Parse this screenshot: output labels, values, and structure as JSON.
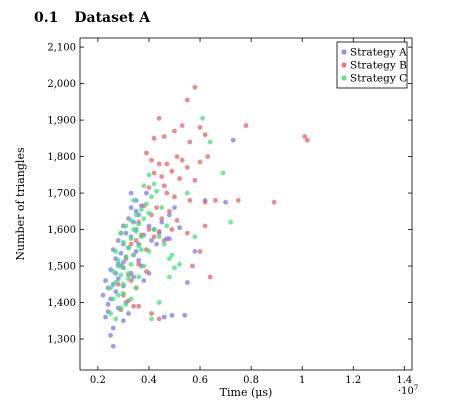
{
  "heading": {
    "number": "0.1",
    "title": "Dataset A"
  },
  "chart_data": {
    "type": "scatter",
    "title": "",
    "xlabel": "Time (μs)",
    "ylabel": "Number of triangles",
    "x_multiplier_label": "·10",
    "x_multiplier_exp": "7",
    "xlim": [
      0.13,
      1.43
    ],
    "ylim": [
      1215,
      2125
    ],
    "xticks": [
      0.2,
      0.4,
      0.6,
      0.8,
      1,
      1.2,
      1.4
    ],
    "xtick_labels": [
      "0.2",
      "0.4",
      "0.6",
      "0.8",
      "1",
      "1.2",
      "1.4"
    ],
    "yticks": [
      1300,
      1400,
      1500,
      1600,
      1700,
      1800,
      1900,
      2000,
      2100
    ],
    "ytick_labels": [
      "1,300",
      "1,400",
      "1,500",
      "1,600",
      "1,700",
      "1,800",
      "1,900",
      "2,000",
      "2,100"
    ],
    "grid": false,
    "legend_position": "top-right",
    "series": [
      {
        "name": "Strategy A",
        "color": "#7b7bea",
        "points": [
          [
            0.26,
            1280
          ],
          [
            0.25,
            1310
          ],
          [
            0.23,
            1360
          ],
          [
            0.24,
            1375
          ],
          [
            0.24,
            1395
          ],
          [
            0.25,
            1410
          ],
          [
            0.22,
            1420
          ],
          [
            0.27,
            1430
          ],
          [
            0.26,
            1450
          ],
          [
            0.23,
            1460
          ],
          [
            0.28,
            1465
          ],
          [
            0.27,
            1480
          ],
          [
            0.25,
            1490
          ],
          [
            0.29,
            1500
          ],
          [
            0.28,
            1505
          ],
          [
            0.3,
            1510
          ],
          [
            0.27,
            1520
          ],
          [
            0.31,
            1525
          ],
          [
            0.29,
            1535
          ],
          [
            0.26,
            1545
          ],
          [
            0.32,
            1550
          ],
          [
            0.3,
            1560
          ],
          [
            0.28,
            1570
          ],
          [
            0.33,
            1580
          ],
          [
            0.31,
            1590
          ],
          [
            0.35,
            1600
          ],
          [
            0.3,
            1610
          ],
          [
            0.34,
            1620
          ],
          [
            0.32,
            1630
          ],
          [
            0.36,
            1640
          ],
          [
            0.33,
            1660
          ],
          [
            0.37,
            1665
          ],
          [
            0.35,
            1680
          ],
          [
            0.33,
            1700
          ],
          [
            0.39,
            1700
          ],
          [
            0.4,
            1610
          ],
          [
            0.42,
            1600
          ],
          [
            0.38,
            1585
          ],
          [
            0.44,
            1590
          ],
          [
            0.41,
            1570
          ],
          [
            0.47,
            1575
          ],
          [
            0.43,
            1560
          ],
          [
            0.35,
            1540
          ],
          [
            0.36,
            1515
          ],
          [
            0.37,
            1500
          ],
          [
            0.33,
            1480
          ],
          [
            0.34,
            1470
          ],
          [
            0.3,
            1445
          ],
          [
            0.31,
            1400
          ],
          [
            0.28,
            1385
          ],
          [
            0.32,
            1370
          ],
          [
            0.3,
            1350
          ],
          [
            0.4,
            1480
          ],
          [
            0.38,
            1460
          ],
          [
            0.45,
            1620
          ],
          [
            0.48,
            1640
          ],
          [
            0.5,
            1660
          ],
          [
            0.52,
            1605
          ],
          [
            0.49,
            1365
          ],
          [
            0.55,
            1455
          ],
          [
            0.58,
            1540
          ],
          [
            0.62,
            1680
          ],
          [
            0.7,
            1675
          ],
          [
            0.73,
            1845
          ],
          [
            0.54,
            1365
          ],
          [
            0.46,
            1360
          ],
          [
            0.48,
            1575
          ],
          [
            0.26,
            1330
          ],
          [
            0.24,
            1440
          ],
          [
            0.29,
            1590
          ],
          [
            0.35,
            1650
          ],
          [
            0.36,
            1560
          ]
        ]
      },
      {
        "name": "Strategy B",
        "color": "#e8616a",
        "points": [
          [
            0.58,
            1990
          ],
          [
            0.55,
            1955
          ],
          [
            0.44,
            1905
          ],
          [
            0.53,
            1885
          ],
          [
            0.6,
            1880
          ],
          [
            0.5,
            1870
          ],
          [
            0.62,
            1860
          ],
          [
            0.46,
            1855
          ],
          [
            0.42,
            1850
          ],
          [
            0.56,
            1840
          ],
          [
            0.39,
            1810
          ],
          [
            0.41,
            1790
          ],
          [
            0.44,
            1780
          ],
          [
            0.51,
            1800
          ],
          [
            0.53,
            1790
          ],
          [
            0.47,
            1780
          ],
          [
            0.55,
            1770
          ],
          [
            0.6,
            1785
          ],
          [
            0.63,
            1800
          ],
          [
            0.49,
            1760
          ],
          [
            0.42,
            1755
          ],
          [
            0.45,
            1745
          ],
          [
            0.52,
            1740
          ],
          [
            0.58,
            1735
          ],
          [
            0.46,
            1720
          ],
          [
            0.4,
            1715
          ],
          [
            0.47,
            1700
          ],
          [
            0.5,
            1690
          ],
          [
            0.56,
            1680
          ],
          [
            0.62,
            1675
          ],
          [
            0.66,
            1680
          ],
          [
            0.38,
            1665
          ],
          [
            0.43,
            1660
          ],
          [
            0.48,
            1650
          ],
          [
            0.41,
            1640
          ],
          [
            0.45,
            1630
          ],
          [
            0.51,
            1625
          ],
          [
            0.36,
            1620
          ],
          [
            0.4,
            1600
          ],
          [
            0.44,
            1595
          ],
          [
            0.37,
            1585
          ],
          [
            0.42,
            1580
          ],
          [
            0.35,
            1570
          ],
          [
            0.33,
            1560
          ],
          [
            0.46,
            1570
          ],
          [
            0.39,
            1545
          ],
          [
            0.34,
            1530
          ],
          [
            0.31,
            1520
          ],
          [
            0.36,
            1505
          ],
          [
            0.3,
            1495
          ],
          [
            0.32,
            1475
          ],
          [
            0.33,
            1460
          ],
          [
            0.28,
            1450
          ],
          [
            0.35,
            1440
          ],
          [
            0.3,
            1420
          ],
          [
            0.32,
            1405
          ],
          [
            0.34,
            1390
          ],
          [
            0.29,
            1380
          ],
          [
            0.41,
            1370
          ],
          [
            0.44,
            1355
          ],
          [
            0.57,
            1500
          ],
          [
            0.64,
            1470
          ],
          [
            0.6,
            1540
          ],
          [
            0.78,
            1885
          ],
          [
            0.89,
            1675
          ],
          [
            1.01,
            1855
          ],
          [
            1.02,
            1845
          ],
          [
            0.75,
            1680
          ],
          [
            0.39,
            1485
          ],
          [
            0.49,
            1600
          ],
          [
            0.55,
            1590
          ],
          [
            0.62,
            1610
          ],
          [
            0.36,
            1390
          ]
        ]
      },
      {
        "name": "Strategy C",
        "color": "#3fe37a",
        "points": [
          [
            0.27,
            1355
          ],
          [
            0.25,
            1370
          ],
          [
            0.29,
            1385
          ],
          [
            0.31,
            1395
          ],
          [
            0.26,
            1410
          ],
          [
            0.28,
            1420
          ],
          [
            0.3,
            1425
          ],
          [
            0.25,
            1440
          ],
          [
            0.27,
            1455
          ],
          [
            0.32,
            1465
          ],
          [
            0.29,
            1475
          ],
          [
            0.26,
            1485
          ],
          [
            0.3,
            1495
          ],
          [
            0.33,
            1505
          ],
          [
            0.28,
            1515
          ],
          [
            0.31,
            1525
          ],
          [
            0.34,
            1530
          ],
          [
            0.27,
            1540
          ],
          [
            0.32,
            1550
          ],
          [
            0.36,
            1555
          ],
          [
            0.3,
            1565
          ],
          [
            0.33,
            1575
          ],
          [
            0.37,
            1580
          ],
          [
            0.29,
            1590
          ],
          [
            0.34,
            1600
          ],
          [
            0.31,
            1610
          ],
          [
            0.36,
            1615
          ],
          [
            0.33,
            1625
          ],
          [
            0.38,
            1630
          ],
          [
            0.35,
            1640
          ],
          [
            0.4,
            1645
          ],
          [
            0.37,
            1655
          ],
          [
            0.39,
            1670
          ],
          [
            0.34,
            1680
          ],
          [
            0.41,
            1690
          ],
          [
            0.43,
            1705
          ],
          [
            0.38,
            1720
          ],
          [
            0.4,
            1750
          ],
          [
            0.42,
            1725
          ],
          [
            0.45,
            1660
          ],
          [
            0.47,
            1610
          ],
          [
            0.42,
            1600
          ],
          [
            0.44,
            1580
          ],
          [
            0.46,
            1560
          ],
          [
            0.48,
            1520
          ],
          [
            0.5,
            1495
          ],
          [
            0.52,
            1505
          ],
          [
            0.4,
            1540
          ],
          [
            0.38,
            1500
          ],
          [
            0.36,
            1470
          ],
          [
            0.35,
            1440
          ],
          [
            0.33,
            1410
          ],
          [
            0.3,
            1450
          ],
          [
            0.28,
            1500
          ],
          [
            0.32,
            1480
          ],
          [
            0.44,
            1400
          ],
          [
            0.41,
            1355
          ],
          [
            0.48,
            1470
          ],
          [
            0.58,
            1580
          ],
          [
            0.61,
            1905
          ],
          [
            0.69,
            1755
          ],
          [
            0.72,
            1620
          ],
          [
            0.64,
            1840
          ],
          [
            0.55,
            1700
          ],
          [
            0.49,
            1530
          ],
          [
            0.35,
            1595
          ],
          [
            0.37,
            1545
          ]
        ]
      }
    ]
  }
}
